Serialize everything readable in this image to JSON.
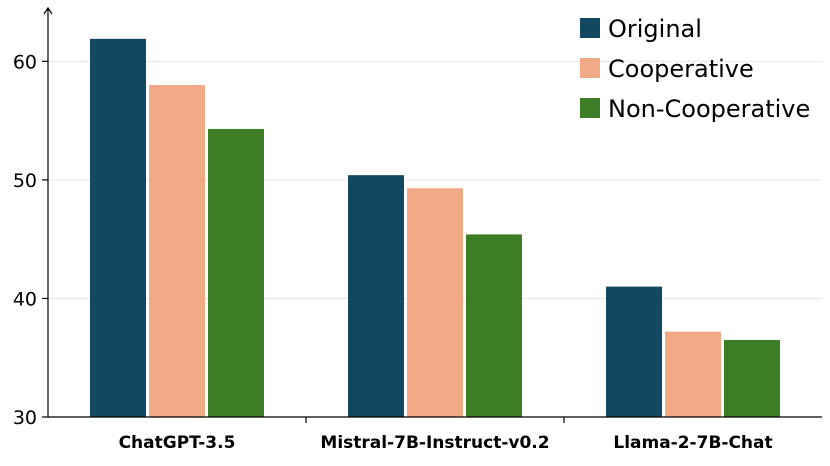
{
  "chart_data": {
    "type": "bar",
    "categories": [
      "ChatGPT-3.5",
      "Mistral-7B-Instruct-v0.2",
      "Llama-2-7B-Chat"
    ],
    "series": [
      {
        "name": "Original",
        "color": "#134862",
        "values": [
          61.9,
          50.4,
          41.0
        ]
      },
      {
        "name": "Cooperative",
        "color": "#f1aa85",
        "values": [
          58.0,
          49.3,
          37.2
        ]
      },
      {
        "name": "Non-Cooperative",
        "color": "#3d7d25",
        "values": [
          54.3,
          45.4,
          36.5
        ]
      }
    ],
    "yticks": [
      "30",
      "40",
      "50",
      "60"
    ],
    "ylim": [
      30,
      64.5
    ],
    "grid": true,
    "legend_position": "top-right",
    "title": "",
    "xlabel": "",
    "ylabel": ""
  }
}
